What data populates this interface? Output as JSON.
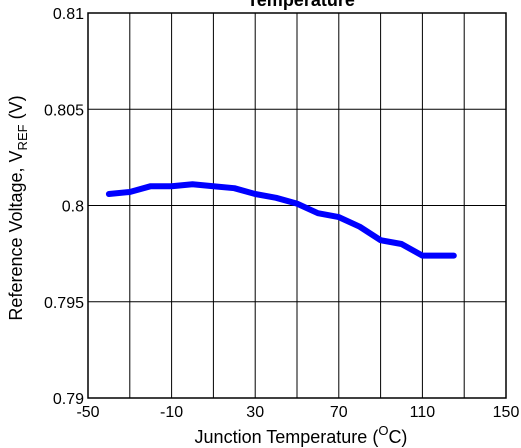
{
  "chart_data": {
    "type": "line",
    "title": "Temperature",
    "xlabel": "Junction Temperature (",
    "xlabel_sup": "O",
    "xlabel_tail": "C)",
    "ylabel": "Reference Voltage, V",
    "ylabel_sub": "REF",
    "ylabel_tail": " (V)",
    "xlim": [
      -50,
      150
    ],
    "ylim": [
      0.79,
      0.81
    ],
    "x_ticks": [
      "-50",
      "-10",
      "30",
      "70",
      "110",
      "150"
    ],
    "y_ticks": [
      "0.79",
      "0.795",
      "0.8",
      "0.805",
      "0.81"
    ],
    "grid": true,
    "line_color": "#0000ff",
    "series": [
      {
        "x": [
          -40,
          -30,
          -20,
          -10,
          0,
          10,
          20,
          30,
          40,
          50,
          60,
          70,
          80,
          90,
          100,
          110,
          125
        ],
        "y": [
          0.8006,
          0.8007,
          0.801,
          0.801,
          0.8011,
          0.801,
          0.8009,
          0.8006,
          0.8004,
          0.8001,
          0.7996,
          0.7994,
          0.7989,
          0.7982,
          0.798,
          0.7974,
          0.7974
        ]
      }
    ]
  }
}
